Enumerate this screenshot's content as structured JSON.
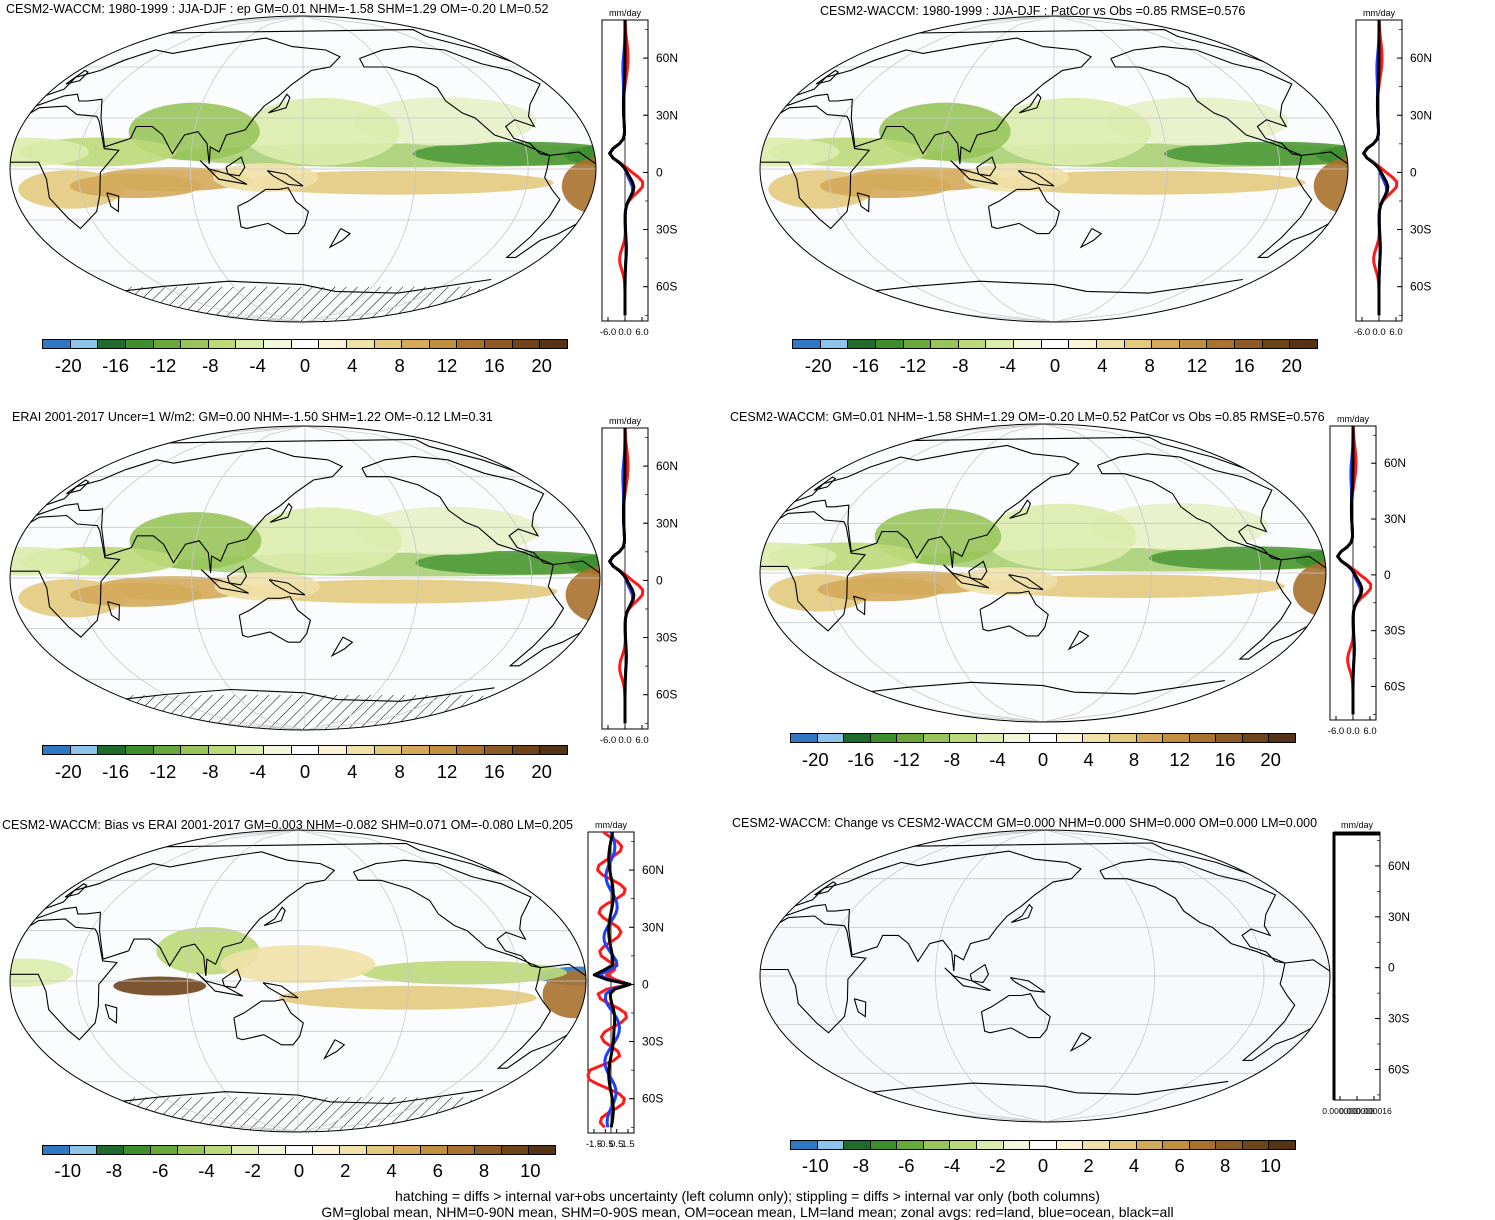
{
  "panels": [
    {
      "id": "p1",
      "title": "CESM2-WACCM: 1980-1999 : JJA-DJF : ep GM=0.01 NHM=-1.58 SHM=1.29 OM=-0.20 LM=0.52",
      "colorbar_labels": [
        "-20",
        "-16",
        "-12",
        "-8",
        "-4",
        "0",
        "4",
        "8",
        "12",
        "16",
        "20"
      ],
      "zonal": {
        "units": "mm/day",
        "xticks": [
          "-6.0",
          "0.0",
          "6.0"
        ],
        "yticks": [
          "60N",
          "30N",
          "0",
          "30S",
          "60S"
        ]
      }
    },
    {
      "id": "p2",
      "title": "CESM2-WACCM: 1980-1999 : JJA-DJF : PatCor vs Obs =0.85 RMSE=0.576",
      "colorbar_labels": [
        "-20",
        "-16",
        "-12",
        "-8",
        "-4",
        "0",
        "4",
        "8",
        "12",
        "16",
        "20"
      ],
      "zonal": {
        "units": "mm/day",
        "xticks": [
          "-6.0",
          "0.0",
          "6.0"
        ],
        "yticks": [
          "60N",
          "30N",
          "0",
          "30S",
          "60S"
        ]
      }
    },
    {
      "id": "p3",
      "title": "ERAI 2001-2017 Uncer=1 W/m2: GM=0.00 NHM=-1.50 SHM=1.22 OM=-0.12 LM=0.31",
      "colorbar_labels": [
        "-20",
        "-16",
        "-12",
        "-8",
        "-4",
        "0",
        "4",
        "8",
        "12",
        "16",
        "20"
      ],
      "zonal": {
        "units": "mm/day",
        "xticks": [
          "-6.0",
          "0.0",
          "6.0"
        ],
        "yticks": [
          "60N",
          "30N",
          "0",
          "30S",
          "60S"
        ]
      }
    },
    {
      "id": "p4",
      "title": "CESM2-WACCM: GM=0.01 NHM=-1.58 SHM=1.29 OM=-0.20 LM=0.52 PatCor vs Obs =0.85 RMSE=0.576",
      "colorbar_labels": [
        "-20",
        "-16",
        "-12",
        "-8",
        "-4",
        "0",
        "4",
        "8",
        "12",
        "16",
        "20"
      ],
      "zonal": {
        "units": "mm/day",
        "xticks": [
          "-6.0",
          "0.0",
          "6.0"
        ],
        "yticks": [
          "60N",
          "30N",
          "0",
          "30S",
          "60S"
        ]
      }
    },
    {
      "id": "p5",
      "title": "CESM2-WACCM: Bias vs ERAI 2001-2017 GM=0.003 NHM=-0.082 SHM=0.071 OM=-0.080 LM=0.205",
      "colorbar_labels": [
        "-10",
        "-8",
        "-6",
        "-4",
        "-2",
        "0",
        "2",
        "4",
        "6",
        "8",
        "10"
      ],
      "zonal": {
        "units": "mm/day",
        "xticks": [
          "-1.5",
          "-0.5",
          "0.5",
          "1.5"
        ],
        "yticks": [
          "60N",
          "30N",
          "0",
          "30S",
          "60S"
        ]
      }
    },
    {
      "id": "p6",
      "title": "CESM2-WACCM: Change vs CESM2-WACCM GM=0.000 NHM=0.000 SHM=0.000 OM=0.000 LM=0.000",
      "colorbar_labels": [
        "-10",
        "-8",
        "-6",
        "-4",
        "-2",
        "0",
        "2",
        "4",
        "6",
        "8",
        "10"
      ],
      "zonal": {
        "units": "mm/day",
        "xticks": [
          "0.000000",
          "0.000008",
          "0.000016"
        ],
        "yticks": [
          "60N",
          "30N",
          "0",
          "30S",
          "60S"
        ]
      }
    }
  ],
  "colorbar_colors": [
    "#2e79c1",
    "#8ec3ea",
    "#1f6b2b",
    "#3e8e2e",
    "#68a83a",
    "#98c45a",
    "#bcd97a",
    "#dcecac",
    "#f2f7dc",
    "#ffffff",
    "#fbf3d6",
    "#efe1a8",
    "#e3c97e",
    "#d4aa5a",
    "#c0903f",
    "#a8712d",
    "#8c5a24",
    "#6f441b",
    "#563314"
  ],
  "zonal_legend": {
    "land": "#ff1a1a",
    "ocean": "#1f3fff",
    "all": "#000000"
  },
  "footer": {
    "line1": "hatching = diffs > internal var+obs uncertainty (left column only); stippling = diffs > internal var only (both columns)",
    "line2": "GM=global mean, NHM=0-90N mean, SHM=0-90S mean, OM=ocean mean, LM=land mean; zonal avgs: red=land, blue=ocean, black=all"
  }
}
